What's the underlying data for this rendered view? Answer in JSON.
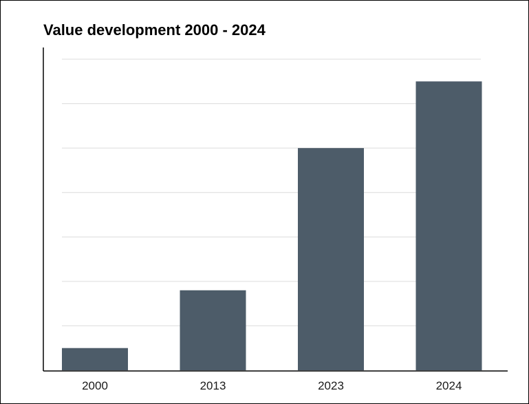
{
  "chart_data": {
    "type": "bar",
    "title": "Value development 2000 - 2024",
    "xlabel": "",
    "ylabel": "",
    "categories": [
      "2000",
      "2013",
      "2023",
      "2024"
    ],
    "values": [
      5,
      18,
      50,
      65
    ],
    "ylim": [
      0,
      70
    ],
    "grid": true,
    "legend": "none",
    "bar_color": "#4d5c69",
    "grid_color": "#dcdcdc",
    "axis_color": "#000000"
  }
}
